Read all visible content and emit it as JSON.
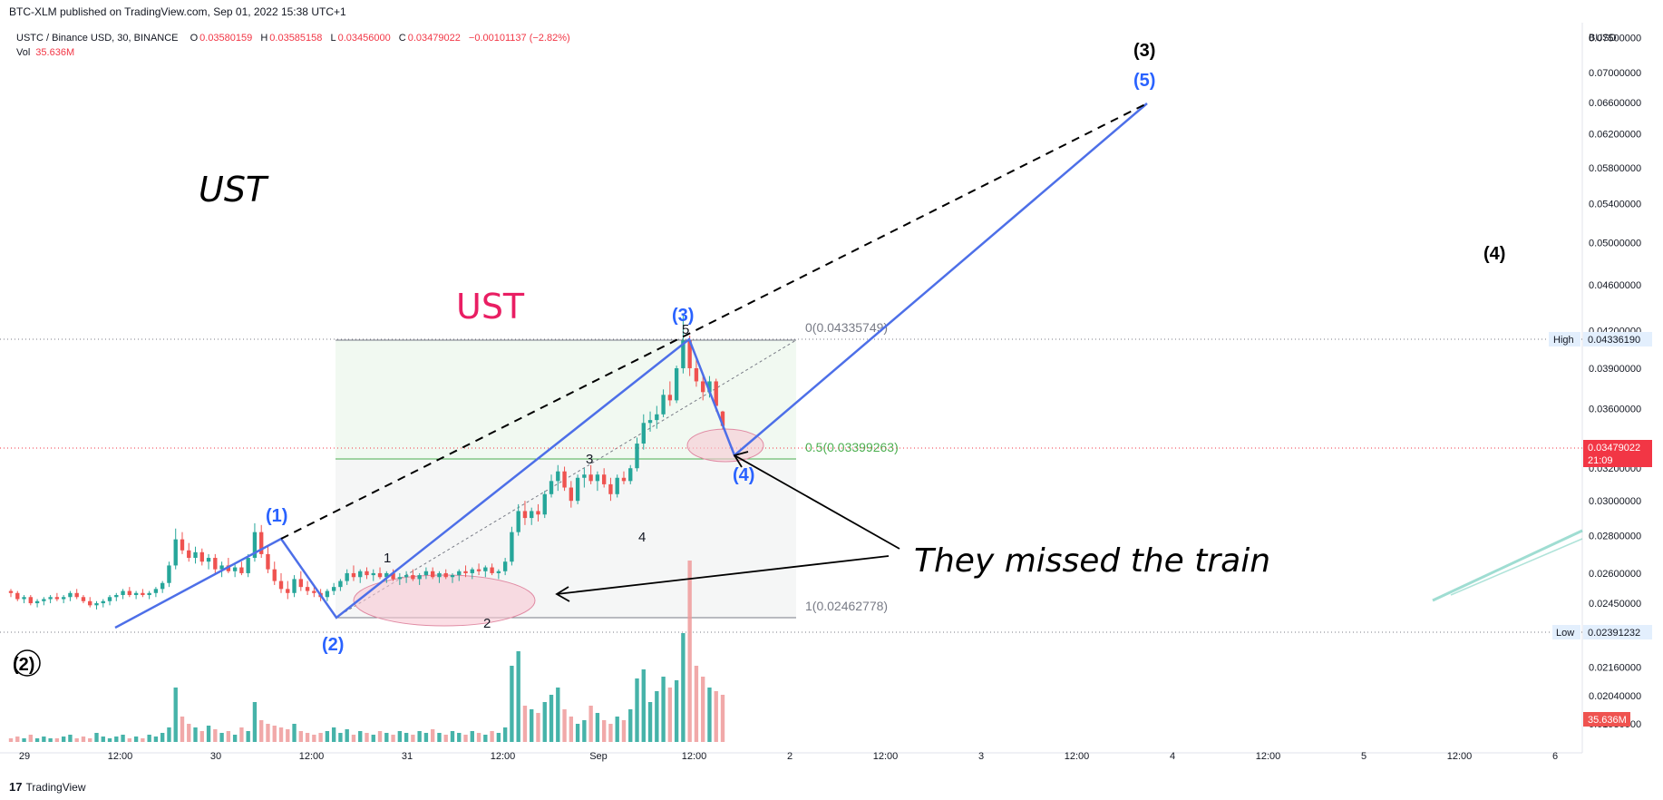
{
  "header": {
    "published": "BTC-XLM published on TradingView.com, Sep 01, 2022 15:38 UTC+1"
  },
  "legend": {
    "symbol": "USTC / Binance USD, 30, BINANCE",
    "o_label": "O",
    "o_value": "0.03580159",
    "h_label": "H",
    "h_value": "0.03585158",
    "l_label": "L",
    "l_value": "0.03456000",
    "c_label": "C",
    "c_value": "0.03479022",
    "change": "−0.00101137 (−2.82%)",
    "vol_label": "Vol",
    "vol_value": "35.636M"
  },
  "footer": {
    "brand": "TradingView",
    "logo": "17"
  },
  "colors": {
    "up": "#26a69a",
    "down": "#ef5350",
    "wave_line": "#4d6fe8",
    "wave_label": "#2962ff",
    "fib_green": "#4caf50",
    "fib_gray": "#787b86",
    "ellipse": "#f2b8c6",
    "last_price": "#f23645",
    "ust_pink": "#e91e63"
  },
  "chart_data": {
    "type": "candlestick",
    "symbol": "USTC / Binance USD",
    "interval": "30",
    "exchange": "BINANCE",
    "currency": "BUSD",
    "price_axis": {
      "scale": "log",
      "ticks": [
        0.075,
        0.07,
        0.066,
        0.062,
        0.058,
        0.054,
        0.05,
        0.046,
        0.042,
        0.039,
        0.036,
        0.032,
        0.03,
        0.028,
        0.026,
        0.0245,
        0.023,
        0.0216,
        0.0204,
        0.0193
      ],
      "tick_labels": [
        "0.07500000",
        "0.07000000",
        "0.06600000",
        "0.06200000",
        "0.05800000",
        "0.05400000",
        "0.05000000",
        "0.04600000",
        "0.04200000",
        "0.03900000",
        "0.03600000",
        "0.03200000",
        "0.03000000",
        "0.02800000",
        "0.02600000",
        "0.02450000",
        "0.02300000",
        "0.02160000",
        "0.02040000",
        "0.01930000"
      ]
    },
    "time_axis": {
      "labels": [
        "29",
        "12:00",
        "30",
        "12:00",
        "31",
        "12:00",
        "Sep",
        "12:00",
        "2",
        "12:00",
        "3",
        "12:00",
        "4",
        "12:00",
        "5",
        "12:00",
        "6"
      ]
    },
    "markers": {
      "high": {
        "label": "High",
        "value": "0.04336190"
      },
      "low": {
        "label": "Low",
        "value": "0.02391232"
      },
      "last": {
        "value": "0.03479022",
        "countdown": "21:09"
      },
      "volume": {
        "value": "35.636M"
      }
    },
    "fibonacci": [
      {
        "level": "0",
        "value": "0.04335749",
        "label": "0(0.04335749)"
      },
      {
        "level": "0.5",
        "value": "0.03399263",
        "label": "0.5(0.03399263)"
      },
      {
        "level": "1",
        "value": "0.02462778",
        "label": "1(0.02462778)"
      }
    ],
    "candles": [
      [
        0.0251,
        0.0252,
        0.0248,
        0.025
      ],
      [
        0.025,
        0.0251,
        0.0246,
        0.0247
      ],
      [
        0.0247,
        0.0249,
        0.0245,
        0.0248
      ],
      [
        0.0248,
        0.0249,
        0.0244,
        0.0245
      ],
      [
        0.0245,
        0.0247,
        0.0243,
        0.0246
      ],
      [
        0.0246,
        0.0248,
        0.0244,
        0.0247
      ],
      [
        0.0247,
        0.0249,
        0.0245,
        0.0248
      ],
      [
        0.0248,
        0.025,
        0.0246,
        0.0247
      ],
      [
        0.0247,
        0.0249,
        0.0245,
        0.0248
      ],
      [
        0.0248,
        0.0251,
        0.0246,
        0.025
      ],
      [
        0.025,
        0.0252,
        0.0247,
        0.0248
      ],
      [
        0.0248,
        0.0249,
        0.0245,
        0.0246
      ],
      [
        0.0246,
        0.0248,
        0.0243,
        0.0244
      ],
      [
        0.0244,
        0.0246,
        0.0242,
        0.0245
      ],
      [
        0.0245,
        0.0247,
        0.0243,
        0.0246
      ],
      [
        0.0246,
        0.0249,
        0.0244,
        0.0248
      ],
      [
        0.0248,
        0.025,
        0.0246,
        0.0249
      ],
      [
        0.0249,
        0.0252,
        0.0247,
        0.0251
      ],
      [
        0.0251,
        0.0253,
        0.0248,
        0.0249
      ],
      [
        0.0249,
        0.0251,
        0.0247,
        0.025
      ],
      [
        0.025,
        0.0252,
        0.0248,
        0.0249
      ],
      [
        0.0249,
        0.0251,
        0.0247,
        0.025
      ],
      [
        0.025,
        0.0253,
        0.0248,
        0.0252
      ],
      [
        0.0252,
        0.0256,
        0.025,
        0.0255
      ],
      [
        0.0255,
        0.0266,
        0.0253,
        0.0264
      ],
      [
        0.0264,
        0.0284,
        0.0262,
        0.0278
      ],
      [
        0.0278,
        0.0282,
        0.027,
        0.0272
      ],
      [
        0.0272,
        0.0276,
        0.0266,
        0.0268
      ],
      [
        0.0268,
        0.0274,
        0.0265,
        0.0271
      ],
      [
        0.0271,
        0.0273,
        0.0264,
        0.0266
      ],
      [
        0.0266,
        0.027,
        0.0262,
        0.0268
      ],
      [
        0.0268,
        0.027,
        0.026,
        0.0262
      ],
      [
        0.0262,
        0.0266,
        0.0258,
        0.0264
      ],
      [
        0.0264,
        0.0268,
        0.026,
        0.0261
      ],
      [
        0.0261,
        0.0265,
        0.0258,
        0.0263
      ],
      [
        0.0263,
        0.0266,
        0.0259,
        0.026
      ],
      [
        0.026,
        0.027,
        0.0258,
        0.0268
      ],
      [
        0.0268,
        0.0287,
        0.0266,
        0.0282
      ],
      [
        0.0282,
        0.0286,
        0.0268,
        0.027
      ],
      [
        0.027,
        0.0274,
        0.026,
        0.0262
      ],
      [
        0.0262,
        0.0266,
        0.0254,
        0.0256
      ],
      [
        0.0256,
        0.026,
        0.025,
        0.0252
      ],
      [
        0.0252,
        0.0256,
        0.0247,
        0.025
      ],
      [
        0.025,
        0.0259,
        0.0248,
        0.0257
      ],
      [
        0.0257,
        0.0261,
        0.0251,
        0.0253
      ],
      [
        0.0253,
        0.0256,
        0.0249,
        0.0251
      ],
      [
        0.0251,
        0.0254,
        0.0248,
        0.025
      ],
      [
        0.025,
        0.0252,
        0.0246,
        0.0248
      ],
      [
        0.0248,
        0.0252,
        0.0246,
        0.0251
      ],
      [
        0.0251,
        0.0255,
        0.0249,
        0.0253
      ],
      [
        0.0253,
        0.0257,
        0.0251,
        0.0256
      ],
      [
        0.0256,
        0.0262,
        0.0254,
        0.026
      ],
      [
        0.026,
        0.0264,
        0.0256,
        0.0258
      ],
      [
        0.0258,
        0.0262,
        0.0255,
        0.0261
      ],
      [
        0.0261,
        0.0263,
        0.0257,
        0.0259
      ],
      [
        0.0259,
        0.0262,
        0.0256,
        0.026
      ],
      [
        0.026,
        0.0263,
        0.0257,
        0.0258
      ],
      [
        0.0258,
        0.0261,
        0.0255,
        0.026
      ],
      [
        0.026,
        0.0262,
        0.0256,
        0.0257
      ],
      [
        0.0257,
        0.026,
        0.0254,
        0.0258
      ],
      [
        0.0258,
        0.0261,
        0.0255,
        0.0259
      ],
      [
        0.0259,
        0.0262,
        0.0256,
        0.0257
      ],
      [
        0.0257,
        0.026,
        0.0254,
        0.0259
      ],
      [
        0.0259,
        0.0263,
        0.0257,
        0.0261
      ],
      [
        0.0261,
        0.0263,
        0.0257,
        0.0258
      ],
      [
        0.0258,
        0.0261,
        0.0255,
        0.026
      ],
      [
        0.026,
        0.0262,
        0.0257,
        0.0258
      ],
      [
        0.0258,
        0.026,
        0.0255,
        0.0259
      ],
      [
        0.0259,
        0.0262,
        0.0256,
        0.0261
      ],
      [
        0.0261,
        0.0264,
        0.0258,
        0.026
      ],
      [
        0.026,
        0.0263,
        0.0257,
        0.0262
      ],
      [
        0.0262,
        0.0265,
        0.0259,
        0.0261
      ],
      [
        0.0261,
        0.0264,
        0.0258,
        0.0263
      ],
      [
        0.0263,
        0.0265,
        0.0259,
        0.026
      ],
      [
        0.026,
        0.0262,
        0.0257,
        0.0261
      ],
      [
        0.0261,
        0.0268,
        0.0259,
        0.0266
      ],
      [
        0.0266,
        0.0285,
        0.0264,
        0.0282
      ],
      [
        0.0282,
        0.0298,
        0.028,
        0.0294
      ],
      [
        0.0294,
        0.03,
        0.0286,
        0.029
      ],
      [
        0.029,
        0.0296,
        0.0286,
        0.0294
      ],
      [
        0.0294,
        0.0298,
        0.0288,
        0.0292
      ],
      [
        0.0292,
        0.0306,
        0.029,
        0.0304
      ],
      [
        0.0304,
        0.0316,
        0.0302,
        0.0312
      ],
      [
        0.0312,
        0.0322,
        0.0306,
        0.0318
      ],
      [
        0.0318,
        0.0321,
        0.0306,
        0.0308
      ],
      [
        0.0308,
        0.0312,
        0.0296,
        0.03
      ],
      [
        0.03,
        0.0316,
        0.0298,
        0.0314
      ],
      [
        0.0314,
        0.032,
        0.0308,
        0.0316
      ],
      [
        0.0316,
        0.0322,
        0.031,
        0.0312
      ],
      [
        0.0312,
        0.0318,
        0.0306,
        0.0316
      ],
      [
        0.0316,
        0.032,
        0.0308,
        0.031
      ],
      [
        0.031,
        0.0314,
        0.03,
        0.0304
      ],
      [
        0.0304,
        0.0316,
        0.0302,
        0.0314
      ],
      [
        0.0314,
        0.0318,
        0.031,
        0.0312
      ],
      [
        0.0312,
        0.0322,
        0.031,
        0.032
      ],
      [
        0.032,
        0.034,
        0.0318,
        0.0336
      ],
      [
        0.0336,
        0.0356,
        0.0332,
        0.035
      ],
      [
        0.035,
        0.0358,
        0.0344,
        0.0352
      ],
      [
        0.0352,
        0.0362,
        0.0346,
        0.0356
      ],
      [
        0.0356,
        0.0374,
        0.0354,
        0.037
      ],
      [
        0.037,
        0.038,
        0.0362,
        0.0366
      ],
      [
        0.0366,
        0.0392,
        0.0364,
        0.039
      ],
      [
        0.039,
        0.04336,
        0.0386,
        0.0412
      ],
      [
        0.0412,
        0.0416,
        0.0384,
        0.039
      ],
      [
        0.039,
        0.0398,
        0.0376,
        0.038
      ],
      [
        0.038,
        0.0386,
        0.0366,
        0.0372
      ],
      [
        0.0372,
        0.0384,
        0.0368,
        0.038
      ],
      [
        0.038,
        0.0382,
        0.0358,
        0.0362
      ],
      [
        0.0358,
        0.03585,
        0.03456,
        0.03479
      ]
    ],
    "volumes": [
      2,
      3,
      2,
      4,
      2,
      3,
      2,
      2,
      3,
      4,
      2,
      3,
      2,
      5,
      3,
      2,
      3,
      4,
      2,
      3,
      2,
      4,
      3,
      5,
      8,
      30,
      14,
      10,
      8,
      6,
      9,
      7,
      5,
      6,
      4,
      8,
      6,
      22,
      12,
      10,
      9,
      8,
      7,
      10,
      6,
      5,
      4,
      5,
      6,
      8,
      5,
      7,
      4,
      6,
      5,
      4,
      6,
      5,
      4,
      6,
      5,
      4,
      6,
      5,
      7,
      5,
      4,
      6,
      5,
      4,
      6,
      5,
      4,
      6,
      5,
      8,
      42,
      50,
      20,
      18,
      16,
      22,
      26,
      30,
      18,
      14,
      10,
      12,
      20,
      16,
      12,
      10,
      14,
      12,
      18,
      35,
      40,
      22,
      28,
      36,
      30,
      34,
      60,
      100,
      42,
      36,
      30,
      28,
      26,
      16
    ]
  },
  "annotations": {
    "ust_black": "UST",
    "ust_pink": "UST",
    "missed_train": "They missed the train",
    "wave_1": "(1)",
    "wave_2": "(2)",
    "wave_3": "(3)",
    "wave_4": "(4)",
    "wave_5": "(5)",
    "wave_3_big": "(3)",
    "wave_4_big": "(4)",
    "wave_2_big": "(2)",
    "sub_1": "1",
    "sub_2": "2",
    "sub_3": "3",
    "sub_4": "4",
    "sub_5": "5"
  }
}
